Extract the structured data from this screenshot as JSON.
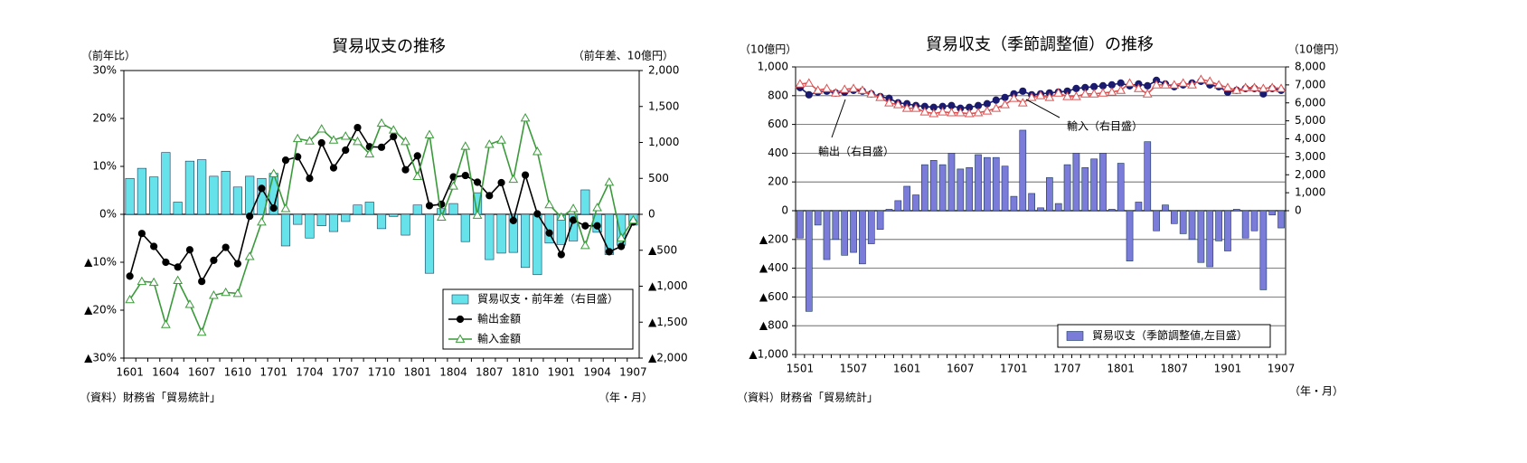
{
  "chart_data": [
    {
      "type": "bar-line",
      "title": "貿易収支の推移",
      "y_label": "（前年比）",
      "y2_label": "（前年差、10億円）",
      "x_label": "（年・月）",
      "source": "（資料）財務省「貿易統計」",
      "categories": [
        "1601",
        null,
        null,
        "1604",
        null,
        null,
        "1607",
        null,
        null,
        "1610",
        null,
        null,
        "1701",
        null,
        null,
        "1704",
        null,
        null,
        "1707",
        null,
        null,
        "1710",
        null,
        null,
        "1801",
        null,
        null,
        "1804",
        null,
        null,
        "1807",
        null,
        null,
        "1810",
        null,
        null,
        "1901",
        null,
        null,
        "1904",
        null,
        null,
        "1907"
      ],
      "ylim": [
        -30,
        30
      ],
      "yticks": [
        {
          "value": 30,
          "label": "30%"
        },
        {
          "value": 20,
          "label": "20%"
        },
        {
          "value": 10,
          "label": "10%"
        },
        {
          "value": 0,
          "label": "0%"
        },
        {
          "value": -10,
          "label": "▲10%"
        },
        {
          "value": -20,
          "label": "▲20%"
        },
        {
          "value": -30,
          "label": "▲30%"
        }
      ],
      "y2lim": [
        -2000,
        2000
      ],
      "y2ticks": [
        {
          "value": 2000,
          "label": "2,000"
        },
        {
          "value": 1500,
          "label": "1,500"
        },
        {
          "value": 1000,
          "label": "1,000"
        },
        500,
        0,
        {
          "value": -500,
          "label": "▲500"
        },
        {
          "value": -1000,
          "label": "▲1,000"
        },
        {
          "value": -1500,
          "label": "▲1,500"
        },
        {
          "value": -2000,
          "label": "▲2,000"
        }
      ],
      "grid": false,
      "legend": "bottom-right",
      "series": [
        {
          "name": "貿易収支・前年差（右目盛）",
          "kind": "bar",
          "axis": "y2",
          "color": "#66e3ea",
          "values": [
            500,
            640,
            520,
            860,
            170,
            740,
            760,
            530,
            600,
            380,
            530,
            500,
            570,
            -440,
            -140,
            -330,
            -160,
            -240,
            -100,
            130,
            170,
            -200,
            -30,
            -290,
            130,
            -820,
            80,
            150,
            -380,
            300,
            -630,
            -540,
            -530,
            -740,
            -840,
            -400,
            -420,
            -370,
            340,
            -250,
            -560,
            -430,
            -150
          ]
        },
        {
          "name": "輸出金額",
          "kind": "line",
          "marker": "circle",
          "color": "#000000",
          "values": [
            -12.9,
            -4,
            -6.7,
            -10,
            -11,
            -7.4,
            -14,
            -9.6,
            -6.9,
            -10.3,
            -0.4,
            5.4,
            1.3,
            11.3,
            12,
            7.5,
            14.9,
            9.7,
            13.4,
            18.1,
            14.1,
            14,
            16.2,
            9.3,
            12.2,
            1.8,
            2.1,
            7.8,
            8.1,
            6.7,
            3.9,
            6.6,
            -1.3,
            8.2,
            0.1,
            -3.9,
            -8.4,
            -1.2,
            -2.4,
            -2.4,
            -7.8,
            -6.7,
            -1.6
          ]
        },
        {
          "name": "輸入金額",
          "kind": "line",
          "marker": "triangle",
          "color": "#3a9a3a",
          "values": [
            -17.8,
            -14,
            -14.2,
            -23,
            -13.8,
            -18.8,
            -24.6,
            -16.9,
            -16.3,
            -16.5,
            -8.8,
            -1.6,
            8.5,
            1.2,
            15.8,
            15.3,
            17.8,
            15.5,
            16.3,
            15.2,
            12.6,
            19,
            17.6,
            15.2,
            7.9,
            16.6,
            -0.6,
            5.9,
            14.2,
            -0.2,
            14.6,
            15.5,
            7.3,
            20.1,
            13.1,
            2,
            -0.6,
            1.2,
            -6.5,
            1.4,
            6.7,
            -4.9,
            -1.2
          ]
        }
      ]
    },
    {
      "type": "bar-line",
      "title": "貿易収支（季節調整値）の推移",
      "y_label": "（10億円）",
      "y2_label": "（10億円）",
      "x_label": "（年・月）",
      "source": "（資料）財務省「貿易統計」",
      "categories": [
        "1501",
        null,
        null,
        null,
        null,
        null,
        "1507",
        null,
        null,
        null,
        null,
        null,
        "1601",
        null,
        null,
        null,
        null,
        null,
        "1607",
        null,
        null,
        null,
        null,
        null,
        "1701",
        null,
        null,
        null,
        null,
        null,
        "1707",
        null,
        null,
        null,
        null,
        null,
        "1801",
        null,
        null,
        null,
        null,
        null,
        "1807",
        null,
        null,
        null,
        null,
        null,
        "1901",
        null,
        null,
        null,
        null,
        null,
        "1907"
      ],
      "ylim": [
        -1000,
        1000
      ],
      "yticks": [
        {
          "value": 1000,
          "label": "1,000"
        },
        800,
        600,
        400,
        200,
        0,
        {
          "value": -200,
          "label": "▲200"
        },
        {
          "value": -400,
          "label": "▲400"
        },
        {
          "value": -600,
          "label": "▲600"
        },
        {
          "value": -800,
          "label": "▲800"
        },
        {
          "value": -1000,
          "label": "▲1,000"
        }
      ],
      "y2lim": [
        -8000,
        8000
      ],
      "y2ticks": [
        {
          "value": 8000,
          "label": "8,000"
        },
        {
          "value": 7000,
          "label": "7,000"
        },
        {
          "value": 6000,
          "label": "6,000"
        },
        {
          "value": 5000,
          "label": "5,000"
        },
        {
          "value": 4000,
          "label": "4,000"
        },
        {
          "value": 3000,
          "label": "3,000"
        },
        {
          "value": 2000,
          "label": "2,000"
        },
        {
          "value": 1000,
          "label": "1,000"
        },
        0
      ],
      "grid": true,
      "legend": "bottom-right",
      "annotations": [
        "輸出（右目盛）",
        "輸入（右目盛）"
      ],
      "series": [
        {
          "name": "貿易収支（季節調整値,左目盛）",
          "kind": "bar",
          "color": "#7b7bd9",
          "values": [
            -190,
            -700,
            -100,
            -340,
            -200,
            -310,
            -290,
            -370,
            -230,
            -130,
            10,
            70,
            170,
            110,
            320,
            350,
            320,
            400,
            290,
            300,
            390,
            370,
            370,
            310,
            100,
            560,
            120,
            20,
            230,
            50,
            320,
            400,
            300,
            360,
            400,
            10,
            330,
            -350,
            60,
            480,
            -140,
            40,
            -90,
            -160,
            -200,
            -360,
            -390,
            -210,
            -280,
            10,
            -190,
            -140,
            -550,
            -30,
            -120
          ]
        },
        {
          "kind": "line",
          "marker": "circle",
          "axis": "y2",
          "color": "#1a1a6e",
          "values": [
            6850,
            6450,
            6600,
            6650,
            6550,
            6600,
            6700,
            6650,
            6500,
            6350,
            6250,
            6000,
            5950,
            5850,
            5800,
            5750,
            5800,
            5850,
            5700,
            5750,
            5850,
            5950,
            6150,
            6300,
            6500,
            6650,
            6450,
            6500,
            6550,
            6600,
            6650,
            6800,
            6850,
            6900,
            6950,
            7000,
            7100,
            6950,
            7050,
            6950,
            7250,
            7050,
            6900,
            7000,
            7100,
            7200,
            7000,
            6900,
            6600,
            6700,
            6800,
            6800,
            6500,
            6800,
            6700
          ]
        },
        {
          "kind": "line",
          "marker": "triangle",
          "axis": "y2",
          "color": "#e05050",
          "values": [
            7050,
            7100,
            6700,
            6800,
            6550,
            6750,
            6800,
            6700,
            6500,
            6300,
            6000,
            5900,
            5700,
            5700,
            5500,
            5400,
            5500,
            5450,
            5450,
            5400,
            5450,
            5550,
            5700,
            5900,
            6250,
            6000,
            6300,
            6400,
            6300,
            6550,
            6350,
            6350,
            6500,
            6500,
            6550,
            6600,
            6700,
            7100,
            6800,
            6500,
            7000,
            7000,
            7000,
            7100,
            7000,
            7300,
            7200,
            7000,
            6850,
            6700,
            6850,
            6850,
            6800,
            6850,
            6800
          ]
        }
      ]
    }
  ]
}
